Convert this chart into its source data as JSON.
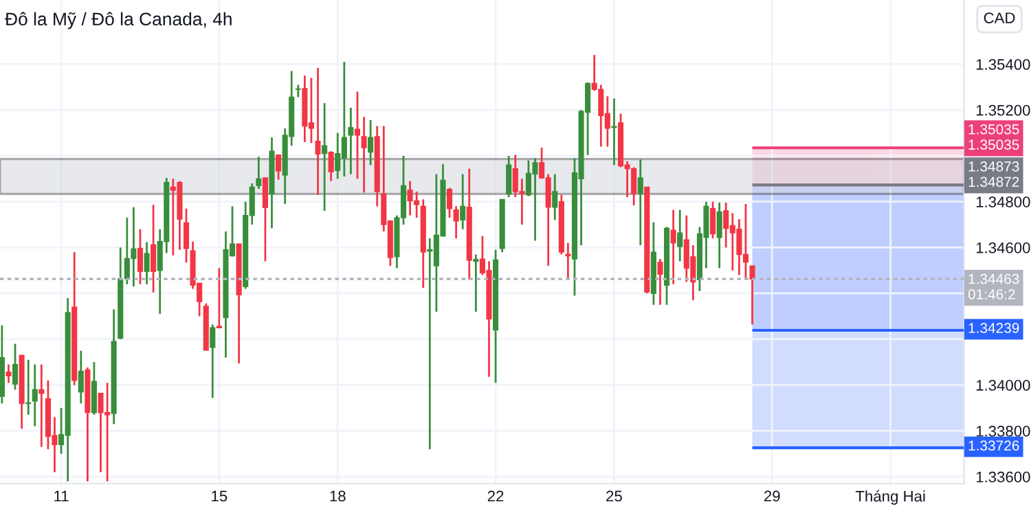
{
  "chart_data": {
    "type": "candlestick",
    "title": "Đô la Mỹ / Đô la Canada, 4h",
    "ylabel": "CAD",
    "x": [
      9.5,
      9.667,
      9.833,
      10,
      10.167,
      10.333,
      10.5,
      10.667,
      10.833,
      11,
      11.167,
      11.333,
      11.5,
      11.667,
      11.833,
      12,
      12.167,
      12.333,
      12.5,
      12.667,
      12.833,
      13,
      13.167,
      13.333,
      13.5,
      13.667,
      13.833,
      14,
      14.167,
      14.333,
      14.5,
      14.667,
      14.833,
      15,
      15.167,
      15.333,
      15.5,
      15.667,
      15.833,
      16,
      16.167,
      16.333,
      16.5,
      16.667,
      16.833,
      17,
      17.167,
      17.333,
      17.5,
      17.667,
      17.833,
      18,
      18.167,
      18.333,
      18.5,
      18.667,
      18.833,
      19,
      19.167,
      19.333,
      19.5,
      19.667,
      19.833,
      20,
      20.167,
      20.333,
      20.5,
      20.667,
      20.833,
      21,
      21.167,
      21.333,
      21.5,
      21.667,
      21.833,
      22,
      22.167,
      22.333,
      22.5,
      22.667,
      22.833,
      23,
      23.167,
      23.333,
      23.5,
      23.667,
      23.833,
      24,
      24.167,
      24.333,
      24.5,
      24.667,
      24.833,
      25,
      25.167,
      25.333,
      25.5,
      25.667,
      25.833,
      26,
      26.167,
      26.333,
      26.5,
      26.667,
      26.833,
      27,
      27.167,
      27.333,
      27.5,
      27.667,
      27.833,
      28,
      28.167,
      28.333,
      28.5
    ],
    "ohlc": [
      [
        1.3395,
        1.3426,
        1.3392,
        1.3412
      ],
      [
        1.34056,
        1.3409,
        1.3401,
        1.3404
      ],
      [
        1.34004,
        1.3418,
        1.3398,
        1.3409
      ],
      [
        1.3413,
        1.3413,
        1.3381,
        1.3392
      ],
      [
        1.3392,
        1.3411,
        1.3387,
        1.3392
      ],
      [
        1.3393,
        1.3409,
        1.3382,
        1.3398
      ],
      [
        1.3398,
        1.3409,
        1.3373,
        1.33964
      ],
      [
        1.3394,
        1.3402,
        1.3372,
        1.33776
      ],
      [
        1.3378,
        1.3386,
        1.3362,
        1.3374
      ],
      [
        1.3374,
        1.339,
        1.337,
        1.33784
      ],
      [
        1.3378,
        1.3438,
        1.3358,
        1.34316
      ],
      [
        1.3434,
        1.3458,
        1.34,
        1.3402
      ],
      [
        1.3397,
        1.3415,
        1.3392,
        1.3406
      ],
      [
        1.34066,
        1.34076,
        1.3358,
        1.3388
      ],
      [
        1.3388,
        1.341,
        1.3387,
        1.34016
      ],
      [
        1.33964,
        1.33964,
        1.3362,
        1.3388
      ],
      [
        1.3388,
        1.3401,
        1.3358,
        1.3387
      ],
      [
        1.33876,
        1.3433,
        1.3383,
        1.3419
      ],
      [
        1.34204,
        1.346,
        1.342,
        1.34464
      ],
      [
        1.34464,
        1.3473,
        1.3444,
        1.34552
      ],
      [
        1.34552,
        1.34776,
        1.3443,
        1.34594
      ],
      [
        1.34596,
        1.3468,
        1.3444,
        1.34496
      ],
      [
        1.34496,
        1.34624,
        1.3444,
        1.34574
      ],
      [
        1.34612,
        1.34786,
        1.34404,
        1.34496
      ],
      [
        1.345,
        1.3468,
        1.3431,
        1.34626
      ],
      [
        1.34626,
        1.34904,
        1.34576,
        1.34884
      ],
      [
        1.34864,
        1.349,
        1.34566,
        1.3485
      ],
      [
        1.34884,
        1.3489,
        1.3459,
        1.34724
      ],
      [
        1.34708,
        1.3477,
        1.34534,
        1.34596
      ],
      [
        1.34586,
        1.34626,
        1.3442,
        1.34436
      ],
      [
        1.34444,
        1.34444,
        1.343,
        1.34364
      ],
      [
        1.34344,
        1.34356,
        1.34152,
        1.34152
      ],
      [
        1.34164,
        1.34264,
        1.33944,
        1.3425
      ],
      [
        1.34256,
        1.3451,
        1.3425,
        1.3425
      ],
      [
        1.34294,
        1.3467,
        1.3412,
        1.3459
      ],
      [
        1.34564,
        1.3478,
        1.3456,
        1.34616
      ],
      [
        1.34616,
        1.34616,
        1.34094,
        1.34394
      ],
      [
        1.3443,
        1.348,
        1.3442,
        1.3474
      ],
      [
        1.3474,
        1.3488,
        1.347,
        1.34864
      ],
      [
        1.3487,
        1.34996,
        1.34856,
        1.349
      ],
      [
        1.34904,
        1.34904,
        1.3454,
        1.34774
      ],
      [
        1.34834,
        1.3508,
        1.34684,
        1.3502
      ],
      [
        1.35004,
        1.35004,
        1.34896,
        1.34934
      ],
      [
        1.34916,
        1.3512,
        1.3479,
        1.3509
      ],
      [
        1.35084,
        1.3537,
        1.35044,
        1.35256
      ],
      [
        1.3529,
        1.3531,
        1.35256,
        1.3529
      ],
      [
        1.35294,
        1.3535,
        1.3506,
        1.3513
      ],
      [
        1.35144,
        1.3534,
        1.35056,
        1.3512
      ],
      [
        1.35064,
        1.35384,
        1.3483,
        1.35008
      ],
      [
        1.3501,
        1.3523,
        1.3476,
        1.35044
      ],
      [
        1.35016,
        1.3502,
        1.3489,
        1.3493
      ],
      [
        1.34936,
        1.351,
        1.349,
        1.3501
      ],
      [
        1.3499,
        1.3541,
        1.3491,
        1.3508
      ],
      [
        1.3509,
        1.3521,
        1.3492,
        1.35124
      ],
      [
        1.35116,
        1.3528,
        1.349,
        1.3509
      ],
      [
        1.35084,
        1.3517,
        1.3484,
        1.35036
      ],
      [
        1.35016,
        1.35156,
        1.3496,
        1.3508
      ],
      [
        1.35084,
        1.3513,
        1.3478,
        1.34844
      ],
      [
        1.34834,
        1.3513,
        1.3467,
        1.347
      ],
      [
        1.34716,
        1.34716,
        1.3452,
        1.34556
      ],
      [
        1.3456,
        1.3474,
        1.3451,
        1.3473
      ],
      [
        1.3473,
        1.35,
        1.347,
        1.3487
      ],
      [
        1.3485,
        1.3489,
        1.3474,
        1.34804
      ],
      [
        1.34804,
        1.34844,
        1.3473,
        1.34788
      ],
      [
        1.3478,
        1.3481,
        1.34424,
        1.3458
      ],
      [
        1.34584,
        1.3464,
        1.3372,
        1.3459
      ],
      [
        1.3452,
        1.3492,
        1.3432,
        1.34654
      ],
      [
        1.3465,
        1.34964,
        1.3465,
        1.34894
      ],
      [
        1.34854,
        1.3486,
        1.3473,
        1.3477
      ],
      [
        1.34764,
        1.3478,
        1.3464,
        1.34716
      ],
      [
        1.3472,
        1.3492,
        1.3468,
        1.3478
      ],
      [
        1.34776,
        1.34944,
        1.3446,
        1.34544
      ],
      [
        1.3454,
        1.3457,
        1.3432,
        1.34548
      ],
      [
        1.3455,
        1.3465,
        1.3448,
        1.3449
      ],
      [
        1.345,
        1.3454,
        1.34036,
        1.34288
      ],
      [
        1.3424,
        1.3459,
        1.3401,
        1.34546
      ],
      [
        1.34596,
        1.3481,
        1.3458,
        1.3481
      ],
      [
        1.34834,
        1.35,
        1.3482,
        1.3496
      ],
      [
        1.34944,
        1.35004,
        1.3482,
        1.34844
      ],
      [
        1.34844,
        1.349,
        1.347,
        1.34836
      ],
      [
        1.3483,
        1.3498,
        1.34824,
        1.34924
      ],
      [
        1.3492,
        1.3499,
        1.3463,
        1.3497
      ],
      [
        1.3497,
        1.35036,
        1.349,
        1.34904
      ],
      [
        1.34904,
        1.3492,
        1.3452,
        1.34776
      ],
      [
        1.34776,
        1.3492,
        1.3472,
        1.34844
      ],
      [
        1.348,
        1.3483,
        1.3457,
        1.3458
      ],
      [
        1.3457,
        1.3462,
        1.3446,
        1.34564
      ],
      [
        1.3455,
        1.3499,
        1.3439,
        1.34926
      ],
      [
        1.349,
        1.352,
        1.3461,
        1.35194
      ],
      [
        1.3519,
        1.3532,
        1.35004,
        1.35316
      ],
      [
        1.35316,
        1.3544,
        1.35284,
        1.3529
      ],
      [
        1.3529,
        1.3531,
        1.3504,
        1.35176
      ],
      [
        1.35184,
        1.3526,
        1.3504,
        1.3512
      ],
      [
        1.35124,
        1.3525,
        1.3496,
        1.35128
      ],
      [
        1.35144,
        1.35184,
        1.3495,
        1.34956
      ],
      [
        1.3496,
        1.34976,
        1.3482,
        1.34944
      ],
      [
        1.34944,
        1.3495,
        1.34784,
        1.34836
      ],
      [
        1.34836,
        1.34984,
        1.3461,
        1.34904
      ],
      [
        1.34864,
        1.34864,
        1.344,
        1.34406
      ],
      [
        1.344,
        1.3471,
        1.3435,
        1.3458
      ],
      [
        1.34536,
        1.3455,
        1.3435,
        1.34484
      ],
      [
        1.34436,
        1.3469,
        1.3435,
        1.34684
      ],
      [
        1.34676,
        1.34764,
        1.3444,
        1.3462
      ],
      [
        1.34604,
        1.34764,
        1.3454,
        1.34664
      ],
      [
        1.34634,
        1.3474,
        1.3445,
        1.3451
      ],
      [
        1.3456,
        1.3461,
        1.3437,
        1.3445
      ],
      [
        1.3446,
        1.3469,
        1.3441,
        1.3466
      ],
      [
        1.34644,
        1.348,
        1.3451,
        1.3478
      ],
      [
        1.3477,
        1.348,
        1.3464,
        1.3466
      ],
      [
        1.34644,
        1.34796,
        1.3451,
        1.34756
      ],
      [
        1.3476,
        1.34796,
        1.346,
        1.34684
      ],
      [
        1.34696,
        1.3475,
        1.345,
        1.34664
      ],
      [
        1.3468,
        1.34724,
        1.3448,
        1.3457
      ],
      [
        1.3457,
        1.3479,
        1.3446,
        1.34536
      ],
      [
        1.3452,
        1.3452,
        1.34264,
        1.34463
      ]
    ],
    "colors": [
      "#388e3c",
      "#f23645",
      "#388e3c",
      "#f23645",
      "#388e3c",
      "#388e3c",
      "#f23645",
      "#f23645",
      "#f23645",
      "#388e3c",
      "#388e3c",
      "#f23645",
      "#388e3c",
      "#f23645",
      "#388e3c",
      "#f23645",
      "#f23645",
      "#388e3c",
      "#388e3c",
      "#388e3c",
      "#388e3c",
      "#f23645",
      "#388e3c",
      "#f23645",
      "#388e3c",
      "#388e3c",
      "#f23645",
      "#f23645",
      "#f23645",
      "#f23645",
      "#f23645",
      "#f23645",
      "#388e3c",
      "#f23645",
      "#388e3c",
      "#388e3c",
      "#f23645",
      "#388e3c",
      "#388e3c",
      "#388e3c",
      "#f23645",
      "#388e3c",
      "#f23645",
      "#388e3c",
      "#388e3c",
      "#388e3c",
      "#f23645",
      "#f23645",
      "#f23645",
      "#388e3c",
      "#f23645",
      "#388e3c",
      "#388e3c",
      "#388e3c",
      "#f23645",
      "#f23645",
      "#388e3c",
      "#f23645",
      "#f23645",
      "#f23645",
      "#388e3c",
      "#388e3c",
      "#f23645",
      "#f23645",
      "#f23645",
      "#388e3c",
      "#388e3c",
      "#388e3c",
      "#f23645",
      "#f23645",
      "#388e3c",
      "#f23645",
      "#388e3c",
      "#f23645",
      "#f23645",
      "#388e3c",
      "#388e3c",
      "#388e3c",
      "#f23645",
      "#f23645",
      "#388e3c",
      "#388e3c",
      "#f23645",
      "#f23645",
      "#388e3c",
      "#f23645",
      "#f23645",
      "#388e3c",
      "#388e3c",
      "#388e3c",
      "#f23645",
      "#f23645",
      "#f23645",
      "#388e3c",
      "#f23645",
      "#f23645",
      "#f23645",
      "#388e3c",
      "#f23645",
      "#388e3c",
      "#f23645",
      "#388e3c",
      "#f23645",
      "#388e3c",
      "#f23645",
      "#f23645",
      "#388e3c",
      "#388e3c",
      "#f23645",
      "#388e3c",
      "#f23645",
      "#f23645",
      "#f23645",
      "#f23645",
      "#f23645"
    ],
    "xlim": [
      9.45,
      33.86
    ],
    "ylim": [
      1.3357,
      1.3568
    ],
    "xticks": [
      11,
      15,
      18,
      22,
      25,
      29,
      {
        "value": 32,
        "label": "Tháng Hai"
      }
    ],
    "yticks": [
      {
        "value": 1.336,
        "label": "1.33600"
      },
      {
        "value": 1.338,
        "label": "1.33800"
      },
      {
        "value": 1.34,
        "label": "1.34000"
      },
      {
        "value": 1.342,
        "label": null
      },
      {
        "value": 1.344,
        "label": null
      },
      {
        "value": 1.346,
        "label": "1.34600"
      },
      {
        "value": 1.348,
        "label": "1.34800"
      },
      {
        "value": 1.35,
        "label": null
      },
      {
        "value": 1.352,
        "label": "1.35200"
      },
      {
        "value": 1.354,
        "label": "1.35400"
      }
    ],
    "grid": true,
    "bands": [
      {
        "axis": "y",
        "from": 1.34834,
        "to": 1.34986,
        "color": "#d1d4dc"
      },
      {
        "axis": "y",
        "from": 1.34872,
        "to": 1.35035,
        "color": "#f8bbd0"
      },
      {
        "axis": "y",
        "from": 1.34239,
        "to": 1.34872,
        "color": "#b3c5ff"
      },
      {
        "axis": "y",
        "from": 1.33726,
        "to": 1.34872,
        "color": "#b3c5ff"
      }
    ],
    "ref_lines": [
      {
        "axis": "y",
        "value": 1.35035,
        "label": "1.35035\n1.35035",
        "color": "#ec407a"
      },
      {
        "axis": "y",
        "value": 1.34873,
        "label": "1.34873\n1.34872",
        "color": "#787b86"
      },
      {
        "axis": "y",
        "value": 1.34463,
        "label": "1.34463\n01:46:2",
        "color": "#b2b5be",
        "line_style": "dotted"
      },
      {
        "axis": "y",
        "value": 1.34239,
        "label": "1.34239",
        "color": "#2962ff"
      },
      {
        "axis": "y",
        "value": 1.33726,
        "label": "1.33726",
        "color": "#2962ff"
      }
    ]
  }
}
